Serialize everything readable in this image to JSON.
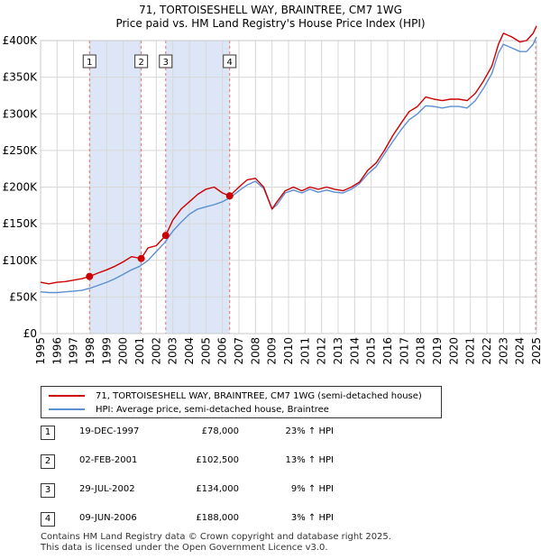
{
  "chart_data": {
    "type": "line",
    "title": "71, TORTOISESHELL WAY, BRAINTREE, CM7 1WG",
    "subtitle": "Price paid vs. HM Land Registry's House Price Index (HPI)",
    "xlabel": "",
    "ylabel": "",
    "xlim": [
      1995,
      2025
    ],
    "ylim": [
      0,
      400000
    ],
    "y_ticks": [
      {
        "value": 0,
        "label": "£0"
      },
      {
        "value": 50000,
        "label": "£50K"
      },
      {
        "value": 100000,
        "label": "£100K"
      },
      {
        "value": 150000,
        "label": "£150K"
      },
      {
        "value": 200000,
        "label": "£200K"
      },
      {
        "value": 250000,
        "label": "£250K"
      },
      {
        "value": 300000,
        "label": "£300K"
      },
      {
        "value": 350000,
        "label": "£350K"
      },
      {
        "value": 400000,
        "label": "£400K"
      }
    ],
    "x_ticks": [
      "1995",
      "1996",
      "1997",
      "1998",
      "1999",
      "2000",
      "2001",
      "2002",
      "2003",
      "2004",
      "2005",
      "2006",
      "2007",
      "2008",
      "2009",
      "2010",
      "2011",
      "2012",
      "2013",
      "2014",
      "2015",
      "2016",
      "2017",
      "2018",
      "2019",
      "2020",
      "2021",
      "2022",
      "2023",
      "2024",
      "2025"
    ],
    "colors": {
      "property": "#cc0000",
      "hpi": "#5b8fd4",
      "shade": "#dde6f6",
      "marker": "#cc0000",
      "vline": "#e07070"
    },
    "series": [
      {
        "name": "71, TORTOISESHELL WAY, BRAINTREE, CM7 1WG (semi-detached house)",
        "x": [
          1995.0,
          1995.5,
          1996.0,
          1996.5,
          1997.0,
          1997.5,
          1997.96,
          1998.5,
          1999.0,
          1999.5,
          2000.0,
          2000.5,
          2001.09,
          2001.5,
          2002.0,
          2002.57,
          2003.0,
          2003.5,
          2004.0,
          2004.5,
          2005.0,
          2005.5,
          2006.0,
          2006.44,
          2007.0,
          2007.5,
          2008.0,
          2008.5,
          2009.0,
          2009.3,
          2009.8,
          2010.3,
          2010.8,
          2011.3,
          2011.8,
          2012.3,
          2012.8,
          2013.3,
          2013.8,
          2014.3,
          2014.8,
          2015.3,
          2015.8,
          2016.3,
          2016.8,
          2017.3,
          2017.8,
          2018.3,
          2018.8,
          2019.3,
          2019.8,
          2020.3,
          2020.8,
          2021.3,
          2021.8,
          2022.3,
          2022.7,
          2023.0,
          2023.5,
          2024.0,
          2024.4,
          2024.8,
          2025.0
        ],
        "values": [
          70000,
          68000,
          70000,
          71000,
          73000,
          75000,
          78000,
          83000,
          87000,
          92000,
          98000,
          105000,
          102500,
          117000,
          120000,
          134000,
          155000,
          170000,
          180000,
          190000,
          197000,
          200000,
          192000,
          188000,
          200000,
          210000,
          212000,
          200000,
          170000,
          180000,
          195000,
          200000,
          195000,
          200000,
          197000,
          200000,
          197000,
          195000,
          200000,
          207000,
          223000,
          233000,
          250000,
          270000,
          287000,
          303000,
          310000,
          323000,
          320000,
          318000,
          320000,
          320000,
          318000,
          328000,
          345000,
          365000,
          395000,
          410000,
          405000,
          398000,
          400000,
          410000,
          420000
        ]
      },
      {
        "name": "HPI: Average price, semi-detached house, Braintree",
        "x": [
          1995.0,
          1995.5,
          1996.0,
          1996.5,
          1997.0,
          1997.5,
          1998.0,
          1998.5,
          1999.0,
          1999.5,
          2000.0,
          2000.5,
          2001.0,
          2001.5,
          2002.0,
          2002.5,
          2003.0,
          2003.5,
          2004.0,
          2004.5,
          2005.0,
          2005.5,
          2006.0,
          2006.5,
          2007.0,
          2007.5,
          2008.0,
          2008.5,
          2009.0,
          2009.3,
          2009.8,
          2010.3,
          2010.8,
          2011.3,
          2011.8,
          2012.3,
          2012.8,
          2013.3,
          2013.8,
          2014.3,
          2014.8,
          2015.3,
          2015.8,
          2016.3,
          2016.8,
          2017.3,
          2017.8,
          2018.3,
          2018.8,
          2019.3,
          2019.8,
          2020.3,
          2020.8,
          2021.3,
          2021.8,
          2022.3,
          2022.7,
          2023.0,
          2023.5,
          2024.0,
          2024.4,
          2024.8,
          2025.0
        ],
        "values": [
          57000,
          56000,
          56000,
          57000,
          58000,
          59000,
          62000,
          66000,
          70000,
          75000,
          81000,
          87000,
          92000,
          100000,
          112000,
          124000,
          140000,
          152000,
          163000,
          170000,
          173000,
          176000,
          180000,
          186000,
          195000,
          203000,
          208000,
          198000,
          170000,
          176000,
          192000,
          196000,
          192000,
          197000,
          193000,
          196000,
          193000,
          192000,
          197000,
          205000,
          218000,
          228000,
          245000,
          262000,
          278000,
          292000,
          300000,
          311000,
          310000,
          308000,
          310000,
          310000,
          308000,
          318000,
          335000,
          355000,
          383000,
          395000,
          390000,
          385000,
          385000,
          395000,
          405000
        ]
      }
    ],
    "sales": [
      {
        "label": "1",
        "x": 1997.96,
        "value": 78000
      },
      {
        "label": "2",
        "x": 2001.09,
        "value": 102500
      },
      {
        "label": "3",
        "x": 2002.57,
        "value": 134000
      },
      {
        "label": "4",
        "x": 2006.44,
        "value": 188000
      }
    ],
    "shaded_ranges": [
      [
        1997.96,
        2001.09
      ],
      [
        2002.57,
        2006.44
      ]
    ]
  },
  "legend": {
    "property": "71, TORTOISESHELL WAY, BRAINTREE, CM7 1WG (semi-detached house)",
    "hpi": "HPI: Average price, semi-detached house, Braintree"
  },
  "transactions": [
    {
      "num": "1",
      "date": "19-DEC-1997",
      "price": "£78,000",
      "hpi": "23% ↑ HPI"
    },
    {
      "num": "2",
      "date": "02-FEB-2001",
      "price": "£102,500",
      "hpi": "13% ↑ HPI"
    },
    {
      "num": "3",
      "date": "29-JUL-2002",
      "price": "£134,000",
      "hpi": "9% ↑ HPI"
    },
    {
      "num": "4",
      "date": "09-JUN-2006",
      "price": "£188,000",
      "hpi": "3% ↑ HPI"
    }
  ],
  "footer": {
    "line1": "Contains HM Land Registry data © Crown copyright and database right 2025.",
    "line2": "This data is licensed under the Open Government Licence v3.0."
  }
}
